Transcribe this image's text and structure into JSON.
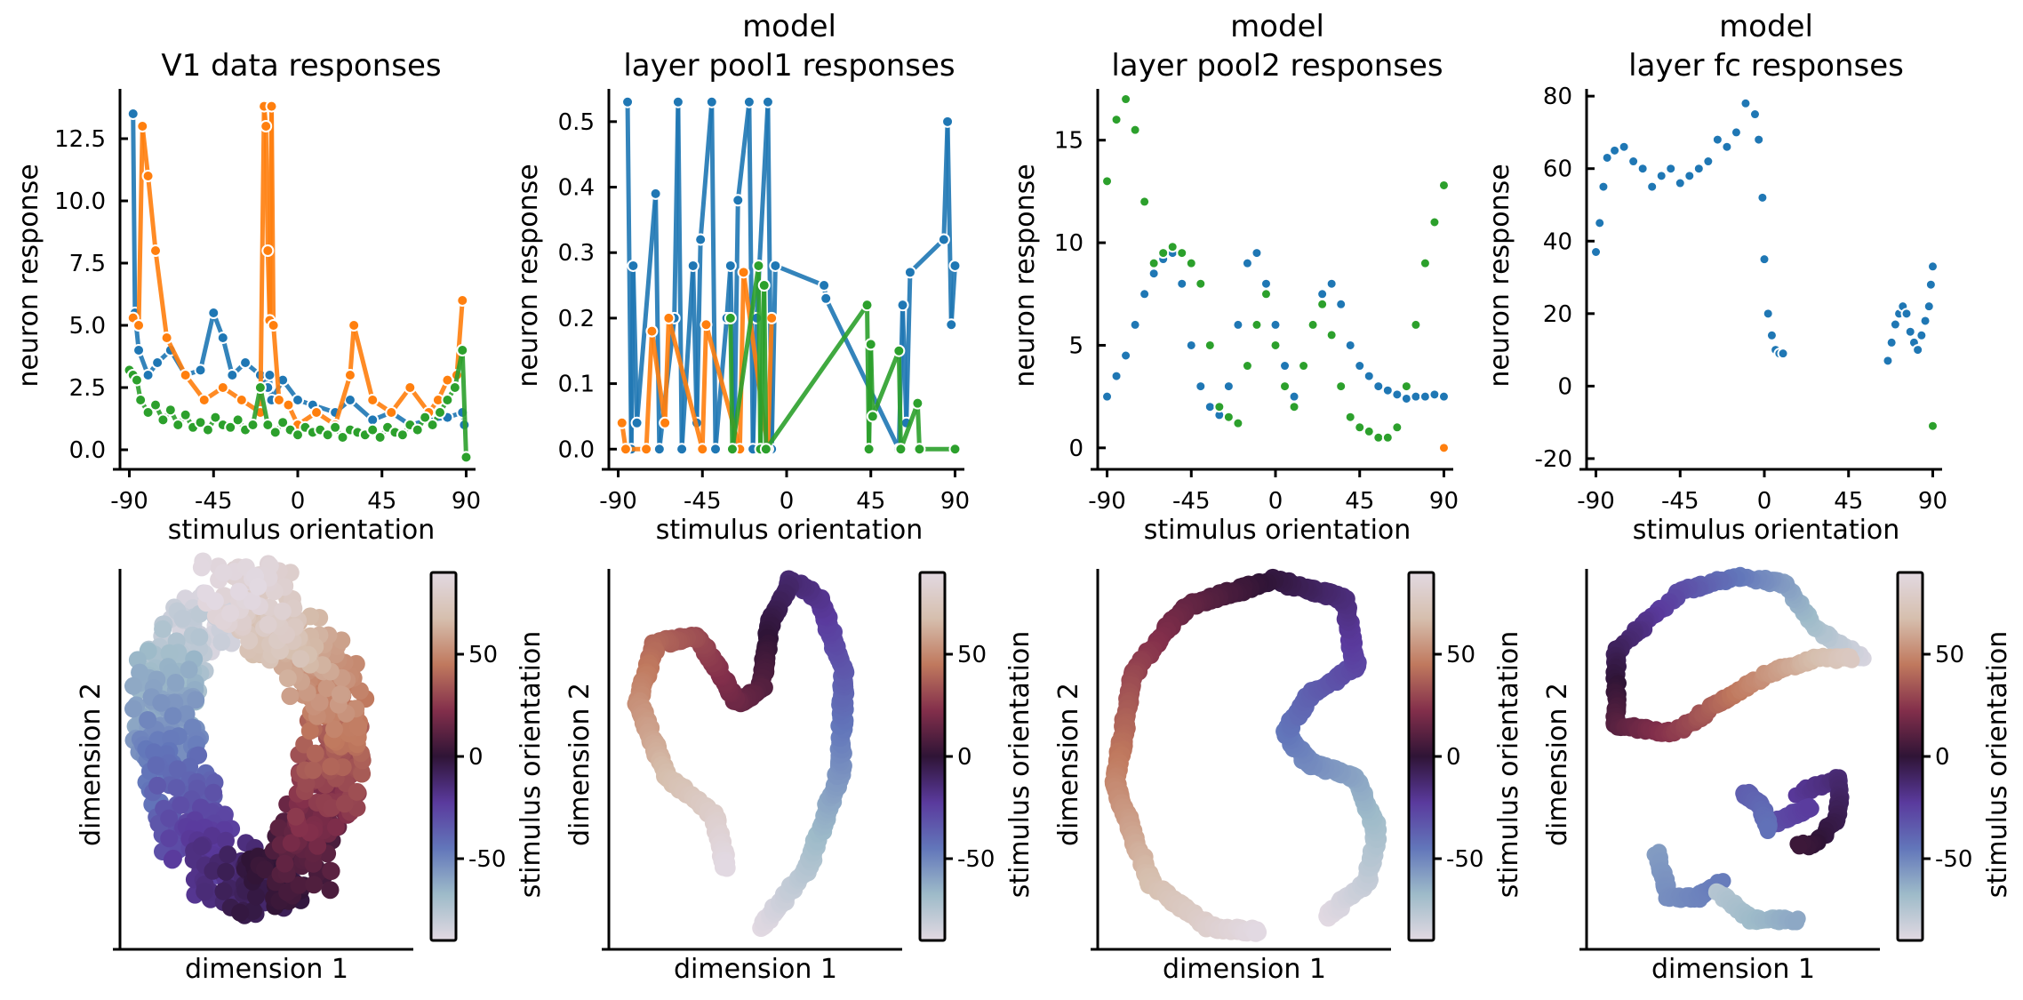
{
  "colors": {
    "series_blue": "#1f77b4",
    "series_orange": "#ff7f0e",
    "series_green": "#2ca02c",
    "colormap": "twilight",
    "colormap_stops": [
      "#e2d9e2",
      "#9ebbc9",
      "#6276ba",
      "#5a3a9d",
      "#2f1436",
      "#832f4b",
      "#c0795e",
      "#d6bfae",
      "#e2d9e2"
    ]
  },
  "chart_data": [
    {
      "type": "line",
      "title": "V1 data responses",
      "xlabel": "stimulus orientation",
      "ylabel": "neuron response",
      "xlim": [
        -95,
        95
      ],
      "ylim": [
        -0.5,
        14.5
      ],
      "xticks": [
        -90,
        -45,
        0,
        45,
        90
      ],
      "xtick_labels": [
        "-90",
        "-45",
        "0",
        "45",
        "90"
      ],
      "yticks": [
        0,
        2.5,
        5,
        7.5,
        10,
        12.5
      ],
      "ytick_labels": [
        "0.0",
        "2.5",
        "5.0",
        "7.5",
        "10.0",
        "12.5"
      ],
      "markers": true,
      "series": [
        {
          "x": [
            -88,
            -87,
            -85,
            -80,
            -75,
            -68,
            -60,
            -52,
            -45,
            -40,
            -35,
            -28,
            -20,
            -16,
            -15,
            -14,
            -8,
            0,
            8,
            20,
            28,
            40,
            50,
            60,
            70,
            80,
            88,
            89
          ],
          "values": [
            13.5,
            5.5,
            4.0,
            3.0,
            3.5,
            4.0,
            3.0,
            3.2,
            5.5,
            4.5,
            3.0,
            3.5,
            3.0,
            2.5,
            3.0,
            2.0,
            2.8,
            2.0,
            1.8,
            1.5,
            2.0,
            1.2,
            1.5,
            1.0,
            1.2,
            1.3,
            1.5,
            1.0
          ],
          "color": "#1f77b4"
        },
        {
          "x": [
            -88,
            -85,
            -83,
            -80,
            -76,
            -70,
            -60,
            -50,
            -40,
            -30,
            -20,
            -18,
            -17,
            -16,
            -15,
            -14,
            -13,
            -10,
            -5,
            0,
            10,
            20,
            28,
            30,
            40,
            50,
            60,
            70,
            75,
            80,
            85,
            88
          ],
          "values": [
            5.3,
            5.0,
            13.0,
            11.0,
            8.0,
            4.5,
            3.0,
            2.0,
            2.5,
            2.0,
            1.5,
            13.8,
            13.0,
            8.0,
            5.2,
            13.8,
            5.0,
            2.0,
            1.8,
            1.0,
            1.5,
            1.0,
            3.0,
            5.0,
            2.0,
            1.5,
            2.5,
            1.5,
            2.0,
            2.8,
            3.0,
            6.0
          ],
          "color": "#ff7f0e"
        },
        {
          "x": [
            -90,
            -88,
            -86,
            -84,
            -80,
            -76,
            -72,
            -68,
            -64,
            -60,
            -56,
            -52,
            -48,
            -44,
            -40,
            -36,
            -32,
            -28,
            -24,
            -20,
            -16,
            -12,
            -8,
            -4,
            0,
            4,
            8,
            12,
            16,
            20,
            24,
            28,
            32,
            36,
            40,
            44,
            48,
            52,
            56,
            60,
            64,
            68,
            72,
            76,
            80,
            84,
            88,
            90
          ],
          "values": [
            3.2,
            3.0,
            2.8,
            2.0,
            1.5,
            1.8,
            1.2,
            1.6,
            1.0,
            1.4,
            0.9,
            1.1,
            0.8,
            1.3,
            1.0,
            0.9,
            1.2,
            0.8,
            1.0,
            2.5,
            1.0,
            0.7,
            1.1,
            0.8,
            0.6,
            0.9,
            0.7,
            0.8,
            0.6,
            0.9,
            0.5,
            0.8,
            0.7,
            0.6,
            0.8,
            0.5,
            0.9,
            0.7,
            0.6,
            1.0,
            0.8,
            1.3,
            1.0,
            1.5,
            2.0,
            2.5,
            4.0,
            -0.3
          ],
          "color": "#2ca02c"
        }
      ]
    },
    {
      "type": "line",
      "title": "model\nlayer pool1 responses",
      "xlabel": "stimulus orientation",
      "ylabel": "neuron response",
      "xlim": [
        -95,
        95
      ],
      "ylim": [
        -0.02,
        0.55
      ],
      "xticks": [
        -90,
        -45,
        0,
        45,
        90
      ],
      "xtick_labels": [
        "-90",
        "-45",
        "0",
        "45",
        "90"
      ],
      "yticks": [
        0,
        0.1,
        0.2,
        0.3,
        0.4,
        0.5
      ],
      "ytick_labels": [
        "0.0",
        "0.1",
        "0.2",
        "0.3",
        "0.4",
        "0.5"
      ],
      "markers": true,
      "series": [
        {
          "x": [
            -85,
            -83,
            -82,
            -80,
            -70,
            -68,
            -60,
            -58,
            -56,
            -50,
            -48,
            -46,
            -40,
            -38,
            -32,
            -30,
            -28,
            -26,
            -20,
            -18,
            -16,
            -10,
            -8,
            -6,
            20,
            21,
            60,
            62,
            64,
            66,
            84,
            86,
            88,
            90
          ],
          "values": [
            0.53,
            0.0,
            0.28,
            0.04,
            0.39,
            0.0,
            0.2,
            0.53,
            0.0,
            0.28,
            0.04,
            0.32,
            0.53,
            0.0,
            0.2,
            0.28,
            0.0,
            0.38,
            0.53,
            0.0,
            0.2,
            0.53,
            0.0,
            0.28,
            0.25,
            0.23,
            0.0,
            0.22,
            0.04,
            0.27,
            0.32,
            0.5,
            0.19,
            0.28
          ],
          "color": "#1f77b4"
        },
        {
          "x": [
            -88,
            -86,
            -75,
            -72,
            -65,
            -63,
            -45,
            -43,
            -25,
            -23,
            -10,
            -8
          ],
          "values": [
            0.04,
            0.0,
            0.0,
            0.18,
            0.04,
            0.2,
            0.0,
            0.19,
            0.0,
            0.27,
            0.0,
            0.2
          ],
          "color": "#ff7f0e"
        },
        {
          "x": [
            -30,
            -29,
            -15,
            -14,
            -12,
            -11,
            43,
            44,
            45,
            46,
            60,
            61,
            70,
            71,
            90
          ],
          "values": [
            0.2,
            0.0,
            0.28,
            0.0,
            0.25,
            0.0,
            0.22,
            0.0,
            0.16,
            0.05,
            0.15,
            0.0,
            0.07,
            0.0,
            0.0
          ],
          "color": "#2ca02c"
        }
      ]
    },
    {
      "type": "scatter",
      "title": "model\nlayer pool2 responses",
      "xlabel": "stimulus orientation",
      "ylabel": "neuron response",
      "xlim": [
        -95,
        95
      ],
      "ylim": [
        -0.7,
        17.5
      ],
      "xticks": [
        -90,
        -45,
        0,
        45,
        90
      ],
      "xtick_labels": [
        "-90",
        "-45",
        "0",
        "45",
        "90"
      ],
      "yticks": [
        0,
        5,
        10,
        15
      ],
      "ytick_labels": [
        "0",
        "5",
        "10",
        "15"
      ],
      "series": [
        {
          "x": [
            -90,
            -85,
            -80,
            -75,
            -70,
            -65,
            -60,
            -55,
            -50,
            -45,
            -40,
            -35,
            -30,
            -25,
            -20,
            -15,
            -10,
            -5,
            0,
            5,
            10,
            15,
            20,
            25,
            30,
            35,
            40,
            45,
            50,
            55,
            60,
            65,
            70,
            75,
            80,
            85,
            90
          ],
          "values": [
            2.5,
            3.5,
            4.5,
            6.0,
            7.5,
            8.5,
            9.2,
            9.5,
            8.0,
            5.0,
            3.0,
            2.0,
            1.6,
            3.0,
            6.0,
            9.0,
            9.5,
            8.0,
            6.0,
            4.0,
            2.5,
            4.0,
            6.0,
            7.5,
            8.0,
            7.0,
            5.0,
            4.0,
            3.5,
            3.0,
            2.8,
            2.6,
            2.4,
            2.5,
            2.5,
            2.6,
            2.5
          ],
          "color": "#1f77b4"
        },
        {
          "x": [
            90
          ],
          "values": [
            0.0
          ],
          "color": "#ff7f0e"
        },
        {
          "x": [
            -90,
            -85,
            -80,
            -75,
            -70,
            -65,
            -60,
            -55,
            -50,
            -45,
            -40,
            -35,
            -30,
            -25,
            -20,
            -15,
            -10,
            -5,
            0,
            5,
            10,
            15,
            20,
            25,
            30,
            35,
            40,
            45,
            50,
            55,
            60,
            65,
            70,
            75,
            80,
            85,
            90
          ],
          "values": [
            13.0,
            16.0,
            17.0,
            15.5,
            12.0,
            9.0,
            9.5,
            9.8,
            9.5,
            9.0,
            8.0,
            5.0,
            2.0,
            1.5,
            1.2,
            4.0,
            6.0,
            7.5,
            5.0,
            3.0,
            2.0,
            4.0,
            6.0,
            7.0,
            5.5,
            3.0,
            1.5,
            1.0,
            0.8,
            0.5,
            0.5,
            1.0,
            3.0,
            6.0,
            9.0,
            11.0,
            12.8
          ],
          "color": "#2ca02c"
        }
      ]
    },
    {
      "type": "scatter",
      "title": "model\nlayer fc responses",
      "xlabel": "stimulus orientation",
      "ylabel": "neuron response",
      "xlim": [
        -95,
        95
      ],
      "ylim": [
        -21,
        82
      ],
      "xticks": [
        -90,
        -45,
        0,
        45,
        90
      ],
      "xtick_labels": [
        "-90",
        "-45",
        "0",
        "45",
        "90"
      ],
      "yticks": [
        -20,
        0,
        20,
        40,
        60,
        80
      ],
      "ytick_labels": [
        "-20",
        "0",
        "20",
        "40",
        "60",
        "80"
      ],
      "series": [
        {
          "x": [
            -90,
            -88,
            -86,
            -84,
            -80,
            -75,
            -70,
            -65,
            -60,
            -55,
            -50,
            -45,
            -40,
            -35,
            -30,
            -25,
            -20,
            -15,
            -10,
            -5,
            -3,
            -1,
            0,
            2,
            4,
            6,
            8,
            10
          ],
          "values": [
            37,
            45,
            55,
            63,
            65,
            66,
            62,
            60,
            55,
            58,
            60,
            56,
            58,
            60,
            62,
            68,
            66,
            70,
            78,
            75,
            68,
            52,
            35,
            20,
            14,
            10,
            9,
            9
          ],
          "color": "#1f77b4"
        },
        {
          "x": [
            66,
            68,
            70,
            72,
            74,
            76,
            78,
            80,
            82,
            84,
            86,
            88,
            89,
            90
          ],
          "values": [
            7,
            12,
            17,
            20,
            22,
            20,
            15,
            12,
            10,
            14,
            18,
            22,
            28,
            33
          ],
          "color": "#1f77b4"
        },
        {
          "x": [
            90
          ],
          "values": [
            -11
          ],
          "color": "#2ca02c"
        }
      ]
    },
    {
      "type": "scatter",
      "xlabel": "dimension 1",
      "ylabel": "dimension 2",
      "colorbar_label": "stimulus orientation",
      "colorbar_range": [
        -90,
        90
      ],
      "colorbar_ticks": [
        -50,
        0,
        50
      ],
      "colorbar_tick_labels": [
        "-50",
        "0",
        "50"
      ],
      "shape": "noisy-ring",
      "curve_points": [
        [
          0.34,
          0.88
        ],
        [
          0.2,
          0.8
        ],
        [
          0.14,
          0.62
        ],
        [
          0.2,
          0.42
        ],
        [
          0.3,
          0.2
        ],
        [
          0.48,
          0.14
        ],
        [
          0.62,
          0.22
        ],
        [
          0.7,
          0.4
        ],
        [
          0.74,
          0.62
        ],
        [
          0.64,
          0.76
        ],
        [
          0.52,
          0.82
        ],
        [
          0.48,
          0.92
        ],
        [
          0.36,
          0.96
        ]
      ]
    },
    {
      "type": "scatter",
      "xlabel": "dimension 1",
      "ylabel": "dimension 2",
      "colorbar_label": "stimulus orientation",
      "colorbar_range": [
        -90,
        90
      ],
      "colorbar_ticks": [
        -50,
        0,
        50
      ],
      "colorbar_tick_labels": [
        "-50",
        "0",
        "50"
      ],
      "shape": "heart",
      "curve_points": [
        [
          0.52,
          0.04
        ],
        [
          0.68,
          0.2
        ],
        [
          0.79,
          0.46
        ],
        [
          0.8,
          0.72
        ],
        [
          0.72,
          0.92
        ],
        [
          0.62,
          0.97
        ],
        [
          0.55,
          0.85
        ],
        [
          0.52,
          0.68
        ],
        [
          0.44,
          0.64
        ],
        [
          0.3,
          0.82
        ],
        [
          0.16,
          0.8
        ],
        [
          0.1,
          0.64
        ],
        [
          0.2,
          0.44
        ],
        [
          0.36,
          0.34
        ],
        [
          0.4,
          0.2
        ]
      ]
    },
    {
      "type": "scatter",
      "xlabel": "dimension 1",
      "ylabel": "dimension 2",
      "colorbar_label": "stimulus orientation",
      "colorbar_range": [
        -90,
        90
      ],
      "colorbar_ticks": [
        -50,
        0,
        50
      ],
      "colorbar_tick_labels": [
        "-50",
        "0",
        "50"
      ],
      "shape": "kidney",
      "curve_points": [
        [
          0.78,
          0.07
        ],
        [
          0.92,
          0.16
        ],
        [
          0.95,
          0.3
        ],
        [
          0.88,
          0.44
        ],
        [
          0.72,
          0.48
        ],
        [
          0.64,
          0.56
        ],
        [
          0.72,
          0.66
        ],
        [
          0.88,
          0.74
        ],
        [
          0.84,
          0.92
        ],
        [
          0.6,
          0.97
        ],
        [
          0.3,
          0.9
        ],
        [
          0.12,
          0.72
        ],
        [
          0.06,
          0.42
        ],
        [
          0.18,
          0.16
        ],
        [
          0.38,
          0.04
        ],
        [
          0.55,
          0.03
        ]
      ]
    },
    {
      "type": "scatter",
      "xlabel": "dimension 1",
      "ylabel": "dimension 2",
      "colorbar_label": "stimulus orientation",
      "colorbar_range": [
        -90,
        90
      ],
      "colorbar_ticks": [
        -50,
        0,
        50
      ],
      "colorbar_tick_labels": [
        "-50",
        "0",
        "50"
      ],
      "shape": "fragmented",
      "curve_points": [
        [
          0.94,
          0.76
        ],
        [
          0.78,
          0.84
        ],
        [
          0.68,
          0.96
        ],
        [
          0.52,
          0.98
        ],
        [
          0.32,
          0.94
        ],
        [
          0.1,
          0.78
        ],
        [
          0.1,
          0.58
        ],
        [
          0.3,
          0.56
        ],
        [
          0.45,
          0.64
        ],
        [
          0.62,
          0.72
        ],
        [
          0.78,
          0.76
        ],
        [
          0.9,
          0.76
        ]
      ],
      "fragments": [
        [
          [
            0.72,
            0.4
          ],
          [
            0.86,
            0.44
          ],
          [
            0.86,
            0.34
          ],
          [
            0.78,
            0.26
          ],
          [
            0.72,
            0.26
          ]
        ],
        [
          [
            0.64,
            0.32
          ],
          [
            0.76,
            0.36
          ]
        ],
        [
          [
            0.54,
            0.4
          ],
          [
            0.6,
            0.36
          ],
          [
            0.62,
            0.3
          ]
        ],
        [
          [
            0.24,
            0.24
          ],
          [
            0.28,
            0.12
          ],
          [
            0.38,
            0.12
          ],
          [
            0.46,
            0.16
          ]
        ],
        [
          [
            0.44,
            0.14
          ],
          [
            0.56,
            0.06
          ],
          [
            0.72,
            0.06
          ]
        ]
      ]
    }
  ]
}
